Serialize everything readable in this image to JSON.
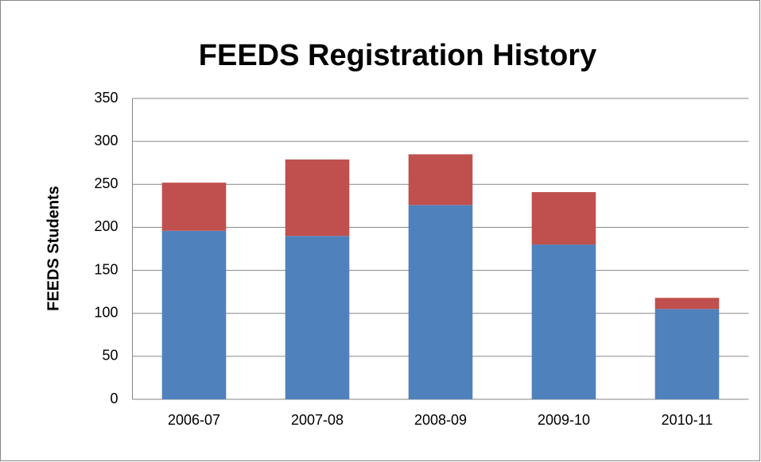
{
  "chart_data": {
    "type": "stacked_bar",
    "title": "FEEDS Registration History",
    "y_label": "FEEDS Students",
    "categories": [
      "2006-07",
      "2007-08",
      "2008-09",
      "2009-10",
      "2010-11"
    ],
    "series": [
      {
        "color": "#4f81bd",
        "values": [
          196,
          190,
          226,
          180,
          105
        ]
      },
      {
        "color": "#c0504d",
        "values": [
          56,
          89,
          59,
          61,
          13
        ]
      }
    ],
    "ylim": [
      0,
      350
    ],
    "yticks": [
      0,
      50,
      100,
      150,
      200,
      250,
      300,
      350
    ],
    "grid": true
  }
}
